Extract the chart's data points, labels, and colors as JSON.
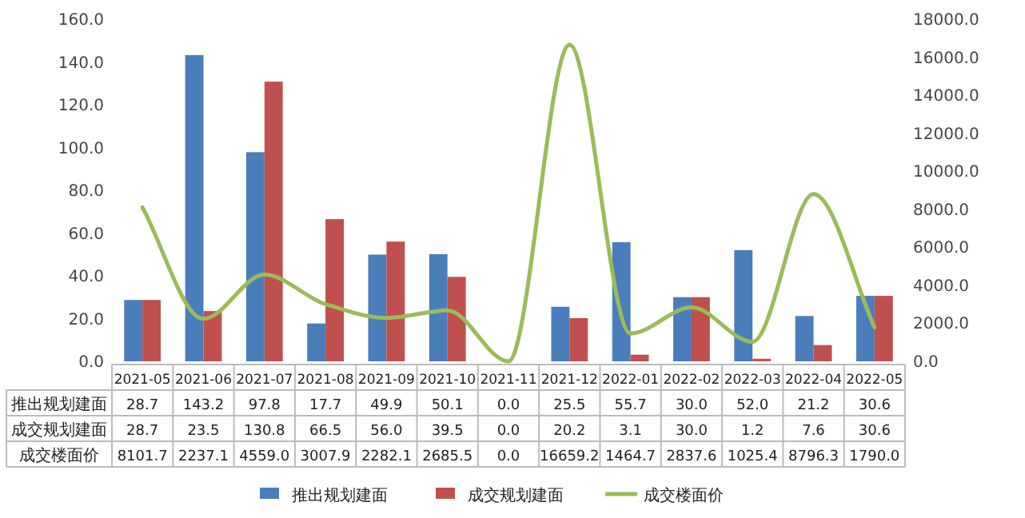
{
  "chart_data": {
    "type": "bar",
    "categories": [
      "2021-05",
      "2021-06",
      "2021-07",
      "2021-08",
      "2021-09",
      "2021-10",
      "2021-11",
      "2021-12",
      "2022-01",
      "2022-02",
      "2022-03",
      "2022-04",
      "2022-05"
    ],
    "series": [
      {
        "name": "推出规划建面",
        "color": "#4a7ebb",
        "values": [
          28.7,
          143.2,
          97.8,
          17.7,
          49.9,
          50.1,
          0.0,
          25.5,
          55.7,
          30.0,
          52.0,
          21.2,
          30.6
        ],
        "value_labels": [
          "28.7",
          "143.2",
          "97.8",
          "17.7",
          "49.9",
          "50.1",
          "0.0",
          "25.5",
          "55.7",
          "30.0",
          "52.0",
          "21.2",
          "30.6"
        ]
      },
      {
        "name": "成交规划建面",
        "color": "#c0504d",
        "values": [
          28.7,
          23.5,
          130.8,
          66.5,
          56.0,
          39.5,
          0.0,
          20.2,
          3.1,
          30.0,
          1.2,
          7.6,
          30.6
        ],
        "value_labels": [
          "28.7",
          "23.5",
          "130.8",
          "66.5",
          "56.0",
          "39.5",
          "0.0",
          "20.2",
          "3.1",
          "30.0",
          "1.2",
          "7.6",
          "30.6"
        ]
      },
      {
        "name": "成交楼面价",
        "type": "line",
        "axis": "y2",
        "color": "#9bbb59",
        "values": [
          8101.7,
          2237.1,
          4559.0,
          3007.9,
          2282.1,
          2685.5,
          0.0,
          16659.2,
          1464.7,
          2837.6,
          1025.4,
          8796.3,
          1790.0
        ],
        "value_labels": [
          "8101.7",
          "2237.1",
          "4559.0",
          "3007.9",
          "2282.1",
          "2685.5",
          "0.0",
          "16659.2",
          "1464.7",
          "2837.6",
          "1025.4",
          "8796.3",
          "1790.0"
        ]
      }
    ],
    "ylim": [
      0,
      160
    ],
    "yticks": [
      {
        "value": 0,
        "label": "0.0"
      },
      {
        "value": 20,
        "label": "20.0"
      },
      {
        "value": 40,
        "label": "40.0"
      },
      {
        "value": 60,
        "label": "60.0"
      },
      {
        "value": 80,
        "label": "80.0"
      },
      {
        "value": 100,
        "label": "100.0"
      },
      {
        "value": 120,
        "label": "120.0"
      },
      {
        "value": 140,
        "label": "140.0"
      },
      {
        "value": 160,
        "label": "160.0"
      }
    ],
    "y2lim": [
      0,
      18000
    ],
    "y2ticks": [
      {
        "value": 0,
        "label": "0.0"
      },
      {
        "value": 2000,
        "label": "2000.0"
      },
      {
        "value": 4000,
        "label": "4000.0"
      },
      {
        "value": 6000,
        "label": "6000.0"
      },
      {
        "value": 8000,
        "label": "8000.0"
      },
      {
        "value": 10000,
        "label": "10000.0"
      },
      {
        "value": 12000,
        "label": "12000.0"
      },
      {
        "value": 14000,
        "label": "14000.0"
      },
      {
        "value": 16000,
        "label": "16000.0"
      },
      {
        "value": 18000,
        "label": "18000.0"
      }
    ],
    "legend": "bottom"
  }
}
